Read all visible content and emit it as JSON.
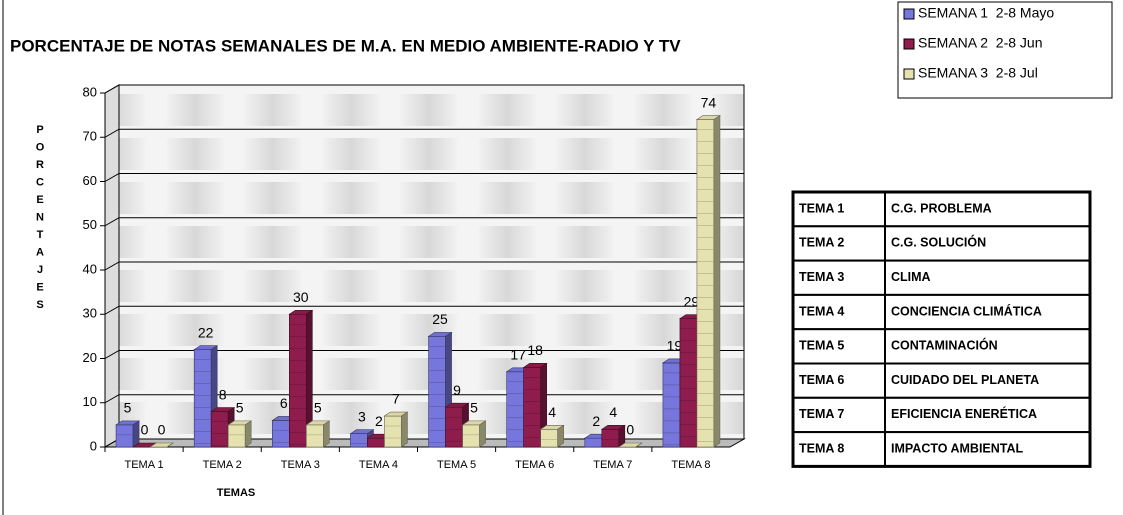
{
  "chart_data": {
    "type": "bar3d",
    "title": "PORCENTAJE DE NOTAS SEMANALES DE M.A. EN MEDIO AMBIENTE-RADIO Y TV",
    "x_label": "TEMAS",
    "y_label": "PORCENTAJES",
    "categories": [
      "TEMA 1",
      "TEMA 2",
      "TEMA 3",
      "TEMA 4",
      "TEMA 5",
      "TEMA 6",
      "TEMA 7",
      "TEMA 8"
    ],
    "series": [
      {
        "name": "SEMANA 1  2-8 Mayo",
        "color": "#7676dc",
        "values": [
          5,
          22,
          6,
          3,
          25,
          17,
          2,
          19
        ]
      },
      {
        "name": "SEMANA 2  2-8 Jun",
        "color": "#8e1c4c",
        "values": [
          0,
          8,
          30,
          2,
          9,
          18,
          4,
          29
        ]
      },
      {
        "name": "SEMANA 3  2-8 Jul",
        "color": "#e6e2b0",
        "values": [
          0,
          5,
          5,
          7,
          5,
          4,
          0,
          74
        ]
      }
    ],
    "ylim": [
      0,
      80
    ],
    "yticks": [
      0,
      10,
      20,
      30,
      40,
      50,
      60,
      70,
      80
    ],
    "grid": true,
    "legend": "top-right"
  },
  "table": {
    "rows": [
      [
        "TEMA 1",
        "C.G. PROBLEMA"
      ],
      [
        "TEMA 2",
        "C.G. SOLUCIÓN"
      ],
      [
        "TEMA 3",
        "CLIMA"
      ],
      [
        "TEMA 4",
        "CONCIENCIA CLIMÁTICA"
      ],
      [
        "TEMA 5",
        "CONTAMINACIÓN"
      ],
      [
        "TEMA 6",
        "CUIDADO DEL PLANETA"
      ],
      [
        "TEMA 7",
        "EFICIENCIA ENERÉTICA"
      ],
      [
        "TEMA 8",
        "IMPACTO AMBIENTAL"
      ]
    ]
  }
}
